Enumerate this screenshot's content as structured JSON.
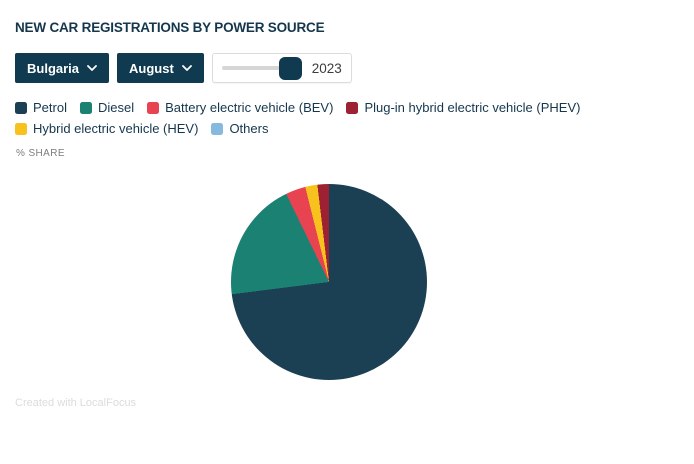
{
  "header": {
    "title": "NEW CAR REGISTRATIONS BY POWER SOURCE"
  },
  "controls": {
    "country_dropdown": {
      "value": "Bulgaria"
    },
    "month_dropdown": {
      "value": "August"
    },
    "year_slider": {
      "value": "2023",
      "handle_position": "max"
    }
  },
  "axis_label": "% SHARE",
  "legend": {
    "items": [
      {
        "label": "Petrol",
        "color": "#1c4053"
      },
      {
        "label": "Diesel",
        "color": "#1a8173"
      },
      {
        "label": "Battery electric vehicle (BEV)",
        "color": "#e84350"
      },
      {
        "label": "Plug-in hybrid electric vehicle (PHEV)",
        "color": "#9e2133"
      },
      {
        "label": "Hybrid electric vehicle (HEV)",
        "color": "#f7c11e"
      },
      {
        "label": "Others",
        "color": "#85bade"
      }
    ]
  },
  "chart_data": {
    "type": "pie",
    "title": "NEW CAR REGISTRATIONS BY POWER SOURCE",
    "unit": "% share",
    "country": "Bulgaria",
    "month": "August",
    "year": "2023",
    "direction": "clockwise",
    "start_angle_deg": 0,
    "legend_position": "top",
    "series": [
      {
        "name": "Petrol",
        "value": 73.0,
        "color": "#1c4053"
      },
      {
        "name": "Diesel",
        "value": 19.8,
        "color": "#1a8173"
      },
      {
        "name": "Battery electric vehicle (BEV)",
        "value": 3.3,
        "color": "#e84350"
      },
      {
        "name": "Hybrid electric vehicle (HEV)",
        "value": 2.0,
        "color": "#f7c11e"
      },
      {
        "name": "Plug-in hybrid electric vehicle (PHEV)",
        "value": 1.9,
        "color": "#9e2133"
      },
      {
        "name": "Others",
        "value": 0.0,
        "color": "#85bade"
      }
    ]
  },
  "footer": {
    "credit": "Created with LocalFocus"
  },
  "colors": {
    "accent_navy": "#0f3a50",
    "text_navy": "#15374e",
    "slider_track": "#d6d6d6",
    "muted_text": "#7d7d7d",
    "credit_text": "#dcdcdc"
  }
}
